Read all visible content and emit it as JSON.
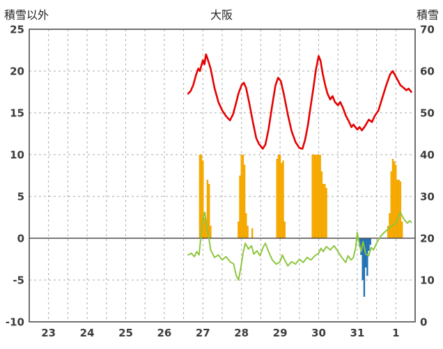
{
  "header": {
    "left_axis_title": "積雪以外",
    "title": "大阪",
    "right_axis_title": "積雪"
  },
  "chart_data": {
    "type": "line",
    "title": "大阪",
    "left_axis": {
      "label": "積雪以外",
      "min": -10,
      "max": 25,
      "ticks": [
        25,
        20,
        15,
        10,
        5,
        0,
        -5,
        -10
      ]
    },
    "right_axis": {
      "label": "積雪",
      "min": 0,
      "max": 70,
      "ticks": [
        70,
        60,
        50,
        40,
        30,
        20,
        10,
        0
      ]
    },
    "x_axis": {
      "min": 22.5,
      "max": 32.5,
      "grid_step": 0.5,
      "tick_labels": [
        "23",
        "24",
        "25",
        "26",
        "27",
        "28",
        "29",
        "30",
        "31",
        "1"
      ],
      "tick_positions": [
        23,
        24,
        25,
        26,
        27,
        28,
        29,
        30,
        31,
        32
      ]
    },
    "style": {
      "grid_color": "#aaaaaa",
      "frame_color": "#4d4d4d",
      "zero_line_color": "#4d4d4d",
      "label_color": "#3c3c3c",
      "background": "#ffffff"
    },
    "series": [
      {
        "name": "orange-bars",
        "type": "bar",
        "axis": "left",
        "color": "#f5a800",
        "points": [
          [
            26.92,
            10
          ],
          [
            26.96,
            10
          ],
          [
            27.0,
            9.3
          ],
          [
            27.04,
            2.5
          ],
          [
            27.08,
            2
          ],
          [
            27.12,
            7
          ],
          [
            27.16,
            6.5
          ],
          [
            27.2,
            1.5
          ],
          [
            27.92,
            2
          ],
          [
            27.96,
            7.5
          ],
          [
            28.0,
            10
          ],
          [
            28.04,
            10
          ],
          [
            28.08,
            8.8
          ],
          [
            28.12,
            3
          ],
          [
            28.16,
            1.5
          ],
          [
            28.28,
            1.2
          ],
          [
            28.92,
            9.5
          ],
          [
            28.96,
            10
          ],
          [
            29.0,
            10
          ],
          [
            29.04,
            9
          ],
          [
            29.08,
            9.3
          ],
          [
            29.12,
            2
          ],
          [
            29.84,
            10
          ],
          [
            29.88,
            10
          ],
          [
            29.92,
            10
          ],
          [
            29.96,
            10
          ],
          [
            30.0,
            10
          ],
          [
            30.04,
            10
          ],
          [
            30.08,
            8
          ],
          [
            30.12,
            6.5
          ],
          [
            30.16,
            6.5
          ],
          [
            30.2,
            6
          ],
          [
            31.8,
            1.5
          ],
          [
            31.84,
            3
          ],
          [
            31.88,
            8
          ],
          [
            31.92,
            9.5
          ],
          [
            31.96,
            9.2
          ],
          [
            32.0,
            8.8
          ],
          [
            32.04,
            7
          ],
          [
            32.08,
            7
          ],
          [
            32.12,
            6.8
          ],
          [
            32.16,
            2
          ]
        ]
      },
      {
        "name": "blue-bars",
        "type": "bar",
        "axis": "left",
        "color": "#2272b5",
        "points": [
          [
            31.06,
            -1
          ],
          [
            31.1,
            -2
          ],
          [
            31.14,
            -5
          ],
          [
            31.18,
            -7
          ],
          [
            31.22,
            -3.5
          ],
          [
            31.26,
            -4.5
          ],
          [
            31.3,
            -1.5
          ],
          [
            31.34,
            -0.8
          ]
        ]
      },
      {
        "name": "green-line",
        "type": "line",
        "axis": "left",
        "color": "#8dc63f",
        "width": 2,
        "points": [
          [
            26.62,
            -2.0
          ],
          [
            26.7,
            -1.8
          ],
          [
            26.78,
            -2.2
          ],
          [
            26.84,
            -1.6
          ],
          [
            26.9,
            -2.0
          ],
          [
            26.95,
            0.3
          ],
          [
            27.0,
            2.4
          ],
          [
            27.05,
            3.1
          ],
          [
            27.1,
            1.4
          ],
          [
            27.15,
            0.2
          ],
          [
            27.2,
            -1.4
          ],
          [
            27.3,
            -2.3
          ],
          [
            27.4,
            -2.0
          ],
          [
            27.5,
            -2.6
          ],
          [
            27.6,
            -2.2
          ],
          [
            27.7,
            -2.8
          ],
          [
            27.8,
            -3.1
          ],
          [
            27.86,
            -4.4
          ],
          [
            27.92,
            -5.0
          ],
          [
            27.98,
            -3.6
          ],
          [
            28.04,
            -1.8
          ],
          [
            28.1,
            -0.6
          ],
          [
            28.18,
            -1.3
          ],
          [
            28.26,
            -0.9
          ],
          [
            28.32,
            -1.9
          ],
          [
            28.4,
            -1.5
          ],
          [
            28.48,
            -2.1
          ],
          [
            28.56,
            -1.1
          ],
          [
            28.62,
            -0.6
          ],
          [
            28.7,
            -1.6
          ],
          [
            28.8,
            -2.6
          ],
          [
            28.9,
            -3.1
          ],
          [
            29.0,
            -2.8
          ],
          [
            29.06,
            -2.0
          ],
          [
            29.12,
            -2.6
          ],
          [
            29.2,
            -3.3
          ],
          [
            29.3,
            -2.8
          ],
          [
            29.4,
            -3.1
          ],
          [
            29.5,
            -2.5
          ],
          [
            29.6,
            -2.9
          ],
          [
            29.7,
            -2.3
          ],
          [
            29.8,
            -2.6
          ],
          [
            29.9,
            -2.1
          ],
          [
            30.0,
            -1.8
          ],
          [
            30.06,
            -1.2
          ],
          [
            30.12,
            -1.6
          ],
          [
            30.2,
            -1.0
          ],
          [
            30.3,
            -1.4
          ],
          [
            30.4,
            -0.9
          ],
          [
            30.5,
            -1.6
          ],
          [
            30.6,
            -2.3
          ],
          [
            30.7,
            -2.9
          ],
          [
            30.76,
            -2.1
          ],
          [
            30.84,
            -2.6
          ],
          [
            30.9,
            -2.3
          ],
          [
            30.96,
            -1.1
          ],
          [
            31.0,
            0.7
          ],
          [
            31.05,
            -0.6
          ],
          [
            31.1,
            -1.6
          ],
          [
            31.15,
            -0.4
          ],
          [
            31.22,
            -1.9
          ],
          [
            31.3,
            -2.1
          ],
          [
            31.36,
            -1.1
          ],
          [
            31.42,
            -1.4
          ],
          [
            31.5,
            -0.6
          ],
          [
            31.6,
            0.2
          ],
          [
            31.7,
            0.7
          ],
          [
            31.8,
            1.1
          ],
          [
            31.9,
            1.5
          ],
          [
            32.0,
            1.8
          ],
          [
            32.06,
            2.5
          ],
          [
            32.12,
            3.1
          ],
          [
            32.18,
            2.5
          ],
          [
            32.24,
            2.1
          ],
          [
            32.3,
            1.8
          ],
          [
            32.36,
            2.1
          ],
          [
            32.4,
            1.9
          ]
        ]
      },
      {
        "name": "red-line",
        "type": "line",
        "axis": "right",
        "color": "#e60000",
        "width": 2.6,
        "points": [
          [
            26.62,
            54.6
          ],
          [
            26.68,
            55.2
          ],
          [
            26.75,
            56.6
          ],
          [
            26.82,
            59
          ],
          [
            26.88,
            60.6
          ],
          [
            26.92,
            60
          ],
          [
            27.0,
            62.6
          ],
          [
            27.04,
            61.6
          ],
          [
            27.08,
            64
          ],
          [
            27.12,
            63
          ],
          [
            27.2,
            60.6
          ],
          [
            27.3,
            56
          ],
          [
            27.4,
            52.6
          ],
          [
            27.5,
            50.6
          ],
          [
            27.6,
            49.2
          ],
          [
            27.7,
            48.2
          ],
          [
            27.78,
            49.6
          ],
          [
            27.85,
            52
          ],
          [
            27.92,
            54.6
          ],
          [
            28.0,
            56.6
          ],
          [
            28.06,
            57.2
          ],
          [
            28.12,
            56
          ],
          [
            28.2,
            52.4
          ],
          [
            28.3,
            47.6
          ],
          [
            28.38,
            44
          ],
          [
            28.45,
            42.6
          ],
          [
            28.55,
            41.4
          ],
          [
            28.62,
            42.4
          ],
          [
            28.7,
            46
          ],
          [
            28.8,
            52
          ],
          [
            28.88,
            56.6
          ],
          [
            28.95,
            58.4
          ],
          [
            29.02,
            57.6
          ],
          [
            29.1,
            54.4
          ],
          [
            29.2,
            49.6
          ],
          [
            29.3,
            45.6
          ],
          [
            29.4,
            43
          ],
          [
            29.5,
            41.6
          ],
          [
            29.58,
            41.4
          ],
          [
            29.65,
            43.6
          ],
          [
            29.72,
            47
          ],
          [
            29.8,
            52
          ],
          [
            29.87,
            56.4
          ],
          [
            29.93,
            60.4
          ],
          [
            30.0,
            63.6
          ],
          [
            30.05,
            62.4
          ],
          [
            30.1,
            59.6
          ],
          [
            30.17,
            56.6
          ],
          [
            30.23,
            54.6
          ],
          [
            30.3,
            53.2
          ],
          [
            30.36,
            54
          ],
          [
            30.42,
            52.6
          ],
          [
            30.5,
            51.8
          ],
          [
            30.56,
            52.6
          ],
          [
            30.63,
            51.2
          ],
          [
            30.7,
            49.4
          ],
          [
            30.78,
            48
          ],
          [
            30.85,
            46.6
          ],
          [
            30.9,
            47.2
          ],
          [
            31.0,
            46
          ],
          [
            31.06,
            46.6
          ],
          [
            31.12,
            45.8
          ],
          [
            31.2,
            46.8
          ],
          [
            31.3,
            48.4
          ],
          [
            31.38,
            47.8
          ],
          [
            31.45,
            49.2
          ],
          [
            31.55,
            50.6
          ],
          [
            31.65,
            53.6
          ],
          [
            31.75,
            56.6
          ],
          [
            31.85,
            59.2
          ],
          [
            31.92,
            60
          ],
          [
            31.98,
            59
          ],
          [
            32.05,
            57.8
          ],
          [
            32.12,
            56.6
          ],
          [
            32.2,
            56
          ],
          [
            32.27,
            55.4
          ],
          [
            32.33,
            55.8
          ],
          [
            32.4,
            55
          ]
        ]
      }
    ]
  }
}
